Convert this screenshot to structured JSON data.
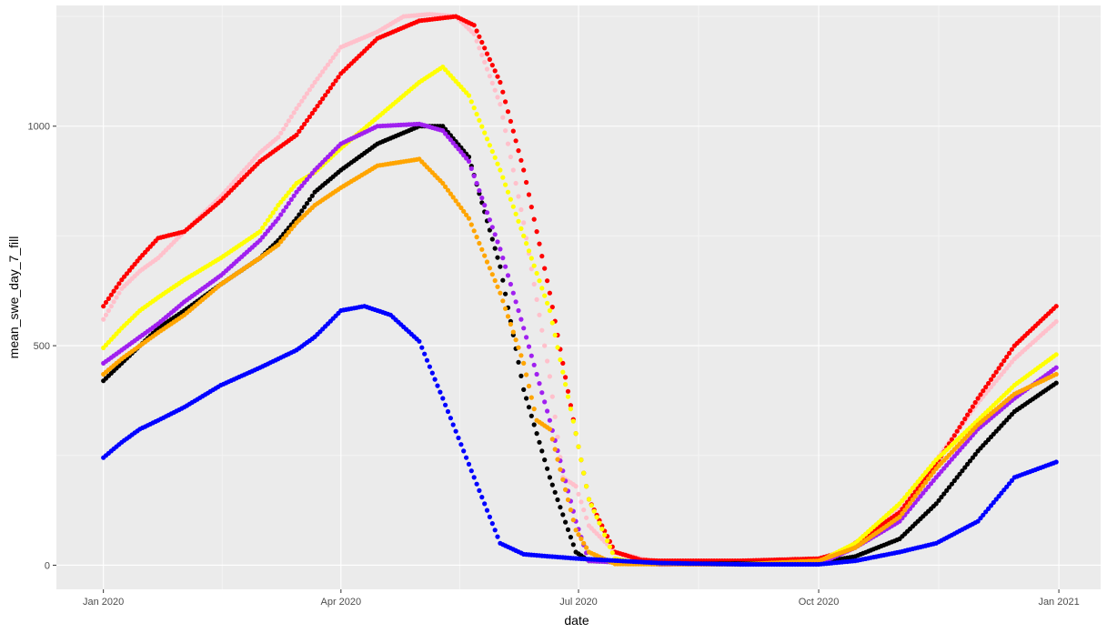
{
  "chart_data": {
    "type": "scatter",
    "title": "",
    "xlabel": "date",
    "ylabel": "mean_swe_day_7_fill",
    "x_axis": {
      "type": "date",
      "range": [
        "2019-12-14",
        "2021-01-17"
      ],
      "ticks": [
        {
          "value": "2020-01-01",
          "label": "Jan 2020"
        },
        {
          "value": "2020-04-01",
          "label": "Apr 2020"
        },
        {
          "value": "2020-07-01",
          "label": "Jul 2020"
        },
        {
          "value": "2020-10-01",
          "label": "Oct 2020"
        },
        {
          "value": "2021-01-01",
          "label": "Jan 2021"
        }
      ]
    },
    "y_axis": {
      "range": [
        -55,
        1275
      ],
      "ticks": [
        {
          "value": 0,
          "label": "0"
        },
        {
          "value": 500,
          "label": "500"
        },
        {
          "value": 1000,
          "label": "1000"
        }
      ]
    },
    "grid": true,
    "legend": "none",
    "colors": {
      "panel": "#ebebeb",
      "grid_major": "#ffffff",
      "grid_minor": "#f4f4f4",
      "tick": "#333333"
    },
    "series": [
      {
        "color": "#ffc0cb",
        "points": [
          [
            "2020-01-01",
            560
          ],
          [
            "2020-01-08",
            630
          ],
          [
            "2020-01-15",
            670
          ],
          [
            "2020-01-22",
            700
          ],
          [
            "2020-02-01",
            760
          ],
          [
            "2020-02-15",
            840
          ],
          [
            "2020-03-01",
            940
          ],
          [
            "2020-03-08",
            975
          ],
          [
            "2020-03-15",
            1040
          ],
          [
            "2020-03-22",
            1100
          ],
          [
            "2020-04-01",
            1180
          ],
          [
            "2020-04-15",
            1215
          ],
          [
            "2020-04-25",
            1250
          ],
          [
            "2020-05-05",
            1255
          ],
          [
            "2020-05-15",
            1250
          ],
          [
            "2020-05-22",
            1210
          ],
          [
            "2020-06-01",
            1050
          ],
          [
            "2020-06-10",
            780
          ],
          [
            "2020-06-20",
            430
          ],
          [
            "2020-06-25",
            200
          ],
          [
            "2020-06-30",
            180
          ],
          [
            "2020-07-05",
            90
          ],
          [
            "2020-07-15",
            30
          ],
          [
            "2020-07-25",
            15
          ],
          [
            "2020-08-01",
            5
          ],
          [
            "2020-09-01",
            3
          ],
          [
            "2020-10-01",
            5
          ],
          [
            "2020-10-15",
            40
          ],
          [
            "2020-11-01",
            130
          ],
          [
            "2020-11-15",
            240
          ],
          [
            "2020-12-01",
            370
          ],
          [
            "2020-12-15",
            470
          ],
          [
            "2020-12-31",
            555
          ]
        ]
      },
      {
        "color": "#ff0000",
        "points": [
          [
            "2020-01-01",
            590
          ],
          [
            "2020-01-08",
            650
          ],
          [
            "2020-01-15",
            700
          ],
          [
            "2020-01-22",
            745
          ],
          [
            "2020-02-01",
            760
          ],
          [
            "2020-02-15",
            830
          ],
          [
            "2020-03-01",
            920
          ],
          [
            "2020-03-15",
            980
          ],
          [
            "2020-04-01",
            1120
          ],
          [
            "2020-04-15",
            1200
          ],
          [
            "2020-05-01",
            1240
          ],
          [
            "2020-05-15",
            1250
          ],
          [
            "2020-05-22",
            1230
          ],
          [
            "2020-06-01",
            1100
          ],
          [
            "2020-06-10",
            900
          ],
          [
            "2020-06-20",
            620
          ],
          [
            "2020-06-30",
            300
          ],
          [
            "2020-07-05",
            150
          ],
          [
            "2020-07-15",
            30
          ],
          [
            "2020-07-25",
            12
          ],
          [
            "2020-08-01",
            10
          ],
          [
            "2020-09-01",
            10
          ],
          [
            "2020-10-01",
            15
          ],
          [
            "2020-10-10",
            30
          ],
          [
            "2020-11-01",
            120
          ],
          [
            "2020-11-15",
            230
          ],
          [
            "2020-12-01",
            380
          ],
          [
            "2020-12-15",
            500
          ],
          [
            "2020-12-31",
            590
          ]
        ]
      },
      {
        "color": "#ffff00",
        "points": [
          [
            "2020-01-01",
            495
          ],
          [
            "2020-01-08",
            540
          ],
          [
            "2020-01-15",
            580
          ],
          [
            "2020-01-22",
            610
          ],
          [
            "2020-02-01",
            650
          ],
          [
            "2020-02-15",
            700
          ],
          [
            "2020-03-01",
            760
          ],
          [
            "2020-03-08",
            820
          ],
          [
            "2020-03-15",
            870
          ],
          [
            "2020-03-22",
            895
          ],
          [
            "2020-04-01",
            950
          ],
          [
            "2020-04-15",
            1020
          ],
          [
            "2020-05-01",
            1100
          ],
          [
            "2020-05-10",
            1135
          ],
          [
            "2020-05-20",
            1070
          ],
          [
            "2020-06-01",
            900
          ],
          [
            "2020-06-10",
            750
          ],
          [
            "2020-06-20",
            580
          ],
          [
            "2020-06-30",
            300
          ],
          [
            "2020-07-05",
            150
          ],
          [
            "2020-07-15",
            15
          ],
          [
            "2020-07-25",
            3
          ],
          [
            "2020-09-01",
            2
          ],
          [
            "2020-10-01",
            8
          ],
          [
            "2020-10-15",
            50
          ],
          [
            "2020-11-01",
            140
          ],
          [
            "2020-11-15",
            240
          ],
          [
            "2020-12-01",
            330
          ],
          [
            "2020-12-15",
            410
          ],
          [
            "2020-12-31",
            480
          ]
        ]
      },
      {
        "color": "#000000",
        "points": [
          [
            "2020-01-01",
            420
          ],
          [
            "2020-01-08",
            460
          ],
          [
            "2020-01-15",
            500
          ],
          [
            "2020-01-22",
            540
          ],
          [
            "2020-02-01",
            580
          ],
          [
            "2020-02-15",
            640
          ],
          [
            "2020-03-01",
            700
          ],
          [
            "2020-03-08",
            740
          ],
          [
            "2020-03-15",
            790
          ],
          [
            "2020-03-22",
            850
          ],
          [
            "2020-04-01",
            900
          ],
          [
            "2020-04-15",
            960
          ],
          [
            "2020-05-01",
            1000
          ],
          [
            "2020-05-10",
            1000
          ],
          [
            "2020-05-20",
            930
          ],
          [
            "2020-06-01",
            680
          ],
          [
            "2020-06-10",
            400
          ],
          [
            "2020-06-20",
            200
          ],
          [
            "2020-06-30",
            30
          ],
          [
            "2020-07-05",
            10
          ],
          [
            "2020-08-01",
            3
          ],
          [
            "2020-10-01",
            5
          ],
          [
            "2020-10-15",
            20
          ],
          [
            "2020-11-01",
            60
          ],
          [
            "2020-11-15",
            140
          ],
          [
            "2020-12-01",
            260
          ],
          [
            "2020-12-15",
            350
          ],
          [
            "2020-12-31",
            415
          ]
        ]
      },
      {
        "color": "#a020f0",
        "points": [
          [
            "2020-01-01",
            460
          ],
          [
            "2020-01-08",
            490
          ],
          [
            "2020-01-15",
            520
          ],
          [
            "2020-01-22",
            550
          ],
          [
            "2020-02-01",
            600
          ],
          [
            "2020-02-15",
            660
          ],
          [
            "2020-03-01",
            740
          ],
          [
            "2020-03-08",
            790
          ],
          [
            "2020-03-15",
            850
          ],
          [
            "2020-03-22",
            900
          ],
          [
            "2020-04-01",
            960
          ],
          [
            "2020-04-15",
            1000
          ],
          [
            "2020-05-01",
            1005
          ],
          [
            "2020-05-10",
            990
          ],
          [
            "2020-05-20",
            920
          ],
          [
            "2020-06-01",
            720
          ],
          [
            "2020-06-10",
            540
          ],
          [
            "2020-06-20",
            330
          ],
          [
            "2020-06-30",
            100
          ],
          [
            "2020-07-05",
            10
          ],
          [
            "2020-08-01",
            2
          ],
          [
            "2020-10-01",
            3
          ],
          [
            "2020-10-15",
            40
          ],
          [
            "2020-11-01",
            100
          ],
          [
            "2020-11-15",
            200
          ],
          [
            "2020-12-01",
            310
          ],
          [
            "2020-12-15",
            380
          ],
          [
            "2020-12-31",
            450
          ]
        ]
      },
      {
        "color": "#ffa500",
        "points": [
          [
            "2020-01-01",
            435
          ],
          [
            "2020-01-08",
            470
          ],
          [
            "2020-01-15",
            500
          ],
          [
            "2020-01-22",
            530
          ],
          [
            "2020-02-01",
            570
          ],
          [
            "2020-02-15",
            640
          ],
          [
            "2020-03-01",
            700
          ],
          [
            "2020-03-08",
            730
          ],
          [
            "2020-03-15",
            780
          ],
          [
            "2020-03-22",
            820
          ],
          [
            "2020-04-01",
            860
          ],
          [
            "2020-04-15",
            910
          ],
          [
            "2020-05-01",
            925
          ],
          [
            "2020-05-10",
            870
          ],
          [
            "2020-05-20",
            790
          ],
          [
            "2020-06-01",
            620
          ],
          [
            "2020-06-10",
            460
          ],
          [
            "2020-06-15",
            330
          ],
          [
            "2020-06-20",
            310
          ],
          [
            "2020-06-30",
            80
          ],
          [
            "2020-07-05",
            30
          ],
          [
            "2020-07-15",
            3
          ],
          [
            "2020-09-01",
            2
          ],
          [
            "2020-10-01",
            10
          ],
          [
            "2020-10-15",
            40
          ],
          [
            "2020-11-01",
            110
          ],
          [
            "2020-11-15",
            220
          ],
          [
            "2020-12-01",
            320
          ],
          [
            "2020-12-15",
            390
          ],
          [
            "2020-12-31",
            435
          ]
        ]
      },
      {
        "color": "#0000ff",
        "points": [
          [
            "2020-01-01",
            245
          ],
          [
            "2020-01-08",
            280
          ],
          [
            "2020-01-15",
            310
          ],
          [
            "2020-01-22",
            330
          ],
          [
            "2020-02-01",
            360
          ],
          [
            "2020-02-15",
            410
          ],
          [
            "2020-03-01",
            450
          ],
          [
            "2020-03-08",
            470
          ],
          [
            "2020-03-15",
            490
          ],
          [
            "2020-03-22",
            520
          ],
          [
            "2020-04-01",
            580
          ],
          [
            "2020-04-10",
            590
          ],
          [
            "2020-04-20",
            570
          ],
          [
            "2020-05-01",
            510
          ],
          [
            "2020-05-10",
            380
          ],
          [
            "2020-05-20",
            230
          ],
          [
            "2020-06-01",
            50
          ],
          [
            "2020-06-10",
            25
          ],
          [
            "2020-06-20",
            20
          ],
          [
            "2020-07-01",
            15
          ],
          [
            "2020-08-01",
            5
          ],
          [
            "2020-09-01",
            2
          ],
          [
            "2020-10-01",
            2
          ],
          [
            "2020-10-15",
            10
          ],
          [
            "2020-11-01",
            30
          ],
          [
            "2020-11-15",
            50
          ],
          [
            "2020-12-01",
            100
          ],
          [
            "2020-12-15",
            200
          ],
          [
            "2020-12-31",
            235
          ]
        ]
      }
    ]
  }
}
